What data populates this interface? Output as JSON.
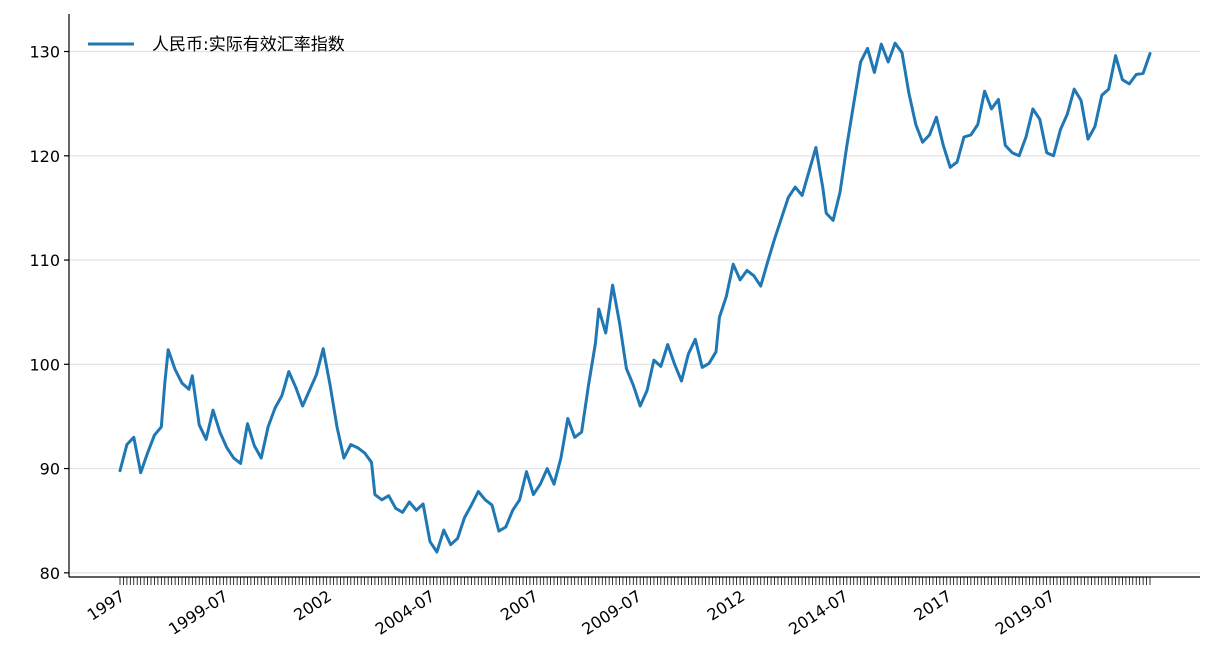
{
  "chart_data": {
    "type": "line",
    "title": "",
    "xlabel": "",
    "ylabel": "",
    "legend": {
      "placement": "top-left"
    },
    "grid": {
      "y": true,
      "x": false
    },
    "ylim": [
      79.6,
      133.6
    ],
    "y_ticks": [
      80,
      90,
      100,
      110,
      120,
      130
    ],
    "x_start": "1997-01",
    "x_end": "2021-12",
    "x_tick_labels": [
      {
        "label": "1997",
        "date": "1997-01"
      },
      {
        "label": "1999-07",
        "date": "1999-07"
      },
      {
        "label": "2002",
        "date": "2002-01"
      },
      {
        "label": "2004-07",
        "date": "2004-07"
      },
      {
        "label": "2007",
        "date": "2007-01"
      },
      {
        "label": "2009-07",
        "date": "2009-07"
      },
      {
        "label": "2012",
        "date": "2012-01"
      },
      {
        "label": "2014-07",
        "date": "2014-07"
      },
      {
        "label": "2017",
        "date": "2017-01"
      },
      {
        "label": "2019-07",
        "date": "2019-07"
      }
    ],
    "series": [
      {
        "name": "人民币:实际有效汇率指数",
        "color": "#1f77b4",
        "points": [
          [
            "1997-01",
            89.8
          ],
          [
            "1997-03",
            92.3
          ],
          [
            "1997-05",
            93.0
          ],
          [
            "1997-07",
            89.6
          ],
          [
            "1997-09",
            91.5
          ],
          [
            "1997-11",
            93.2
          ],
          [
            "1998-01",
            94.0
          ],
          [
            "1998-02",
            98.2
          ],
          [
            "1998-03",
            101.4
          ],
          [
            "1998-05",
            99.5
          ],
          [
            "1998-07",
            98.2
          ],
          [
            "1998-09",
            97.6
          ],
          [
            "1998-10",
            98.9
          ],
          [
            "1998-12",
            94.2
          ],
          [
            "1999-02",
            92.8
          ],
          [
            "1999-04",
            95.6
          ],
          [
            "1999-06",
            93.5
          ],
          [
            "1999-08",
            92.0
          ],
          [
            "1999-10",
            91.0
          ],
          [
            "1999-12",
            90.5
          ],
          [
            "2000-02",
            94.3
          ],
          [
            "2000-04",
            92.2
          ],
          [
            "2000-06",
            91.0
          ],
          [
            "2000-08",
            94.0
          ],
          [
            "2000-10",
            95.8
          ],
          [
            "2000-12",
            97.0
          ],
          [
            "2001-02",
            99.3
          ],
          [
            "2001-04",
            97.8
          ],
          [
            "2001-06",
            96.0
          ],
          [
            "2001-08",
            97.5
          ],
          [
            "2001-10",
            99.0
          ],
          [
            "2001-12",
            101.5
          ],
          [
            "2002-02",
            98.0
          ],
          [
            "2002-04",
            94.0
          ],
          [
            "2002-06",
            91.0
          ],
          [
            "2002-08",
            92.3
          ],
          [
            "2002-10",
            92.0
          ],
          [
            "2002-12",
            91.5
          ],
          [
            "2003-02",
            90.6
          ],
          [
            "2003-03",
            87.5
          ],
          [
            "2003-05",
            87.0
          ],
          [
            "2003-07",
            87.4
          ],
          [
            "2003-09",
            86.2
          ],
          [
            "2003-11",
            85.8
          ],
          [
            "2004-01",
            86.8
          ],
          [
            "2004-03",
            86.0
          ],
          [
            "2004-05",
            86.6
          ],
          [
            "2004-07",
            83.0
          ],
          [
            "2004-09",
            82.0
          ],
          [
            "2004-11",
            84.1
          ],
          [
            "2005-01",
            82.7
          ],
          [
            "2005-03",
            83.3
          ],
          [
            "2005-05",
            85.3
          ],
          [
            "2005-07",
            86.5
          ],
          [
            "2005-09",
            87.8
          ],
          [
            "2005-11",
            87.0
          ],
          [
            "2006-01",
            86.5
          ],
          [
            "2006-03",
            84.0
          ],
          [
            "2006-05",
            84.4
          ],
          [
            "2006-07",
            86.0
          ],
          [
            "2006-09",
            87.0
          ],
          [
            "2006-11",
            89.7
          ],
          [
            "2007-01",
            87.5
          ],
          [
            "2007-03",
            88.5
          ],
          [
            "2007-05",
            90.0
          ],
          [
            "2007-07",
            88.5
          ],
          [
            "2007-09",
            91.0
          ],
          [
            "2007-11",
            94.8
          ],
          [
            "2008-01",
            93.0
          ],
          [
            "2008-03",
            93.5
          ],
          [
            "2008-05",
            98.0
          ],
          [
            "2008-07",
            102.0
          ],
          [
            "2008-08",
            105.3
          ],
          [
            "2008-10",
            103.0
          ],
          [
            "2008-12",
            107.6
          ],
          [
            "2009-02",
            104.0
          ],
          [
            "2009-04",
            99.6
          ],
          [
            "2009-06",
            98.0
          ],
          [
            "2009-08",
            96.0
          ],
          [
            "2009-10",
            97.5
          ],
          [
            "2009-12",
            100.4
          ],
          [
            "2010-02",
            99.8
          ],
          [
            "2010-04",
            101.9
          ],
          [
            "2010-06",
            100.0
          ],
          [
            "2010-08",
            98.4
          ],
          [
            "2010-10",
            101.0
          ],
          [
            "2010-12",
            102.4
          ],
          [
            "2011-02",
            99.7
          ],
          [
            "2011-04",
            100.1
          ],
          [
            "2011-06",
            101.2
          ],
          [
            "2011-07",
            104.5
          ],
          [
            "2011-09",
            106.5
          ],
          [
            "2011-11",
            109.6
          ],
          [
            "2012-01",
            108.1
          ],
          [
            "2012-03",
            109.0
          ],
          [
            "2012-05",
            108.5
          ],
          [
            "2012-07",
            107.5
          ],
          [
            "2012-09",
            109.8
          ],
          [
            "2012-11",
            112.0
          ],
          [
            "2013-01",
            114.0
          ],
          [
            "2013-03",
            116.0
          ],
          [
            "2013-05",
            117.0
          ],
          [
            "2013-07",
            116.2
          ],
          [
            "2013-09",
            118.5
          ],
          [
            "2013-11",
            120.8
          ],
          [
            "2014-01",
            117.0
          ],
          [
            "2014-02",
            114.5
          ],
          [
            "2014-04",
            113.8
          ],
          [
            "2014-06",
            116.5
          ],
          [
            "2014-08",
            121.0
          ],
          [
            "2014-10",
            125.0
          ],
          [
            "2014-12",
            129.0
          ],
          [
            "2015-02",
            130.3
          ],
          [
            "2015-04",
            128.0
          ],
          [
            "2015-06",
            130.7
          ],
          [
            "2015-08",
            129.0
          ],
          [
            "2015-10",
            130.8
          ],
          [
            "2015-12",
            129.9
          ],
          [
            "2016-02",
            126.0
          ],
          [
            "2016-04",
            123.0
          ],
          [
            "2016-06",
            121.3
          ],
          [
            "2016-08",
            122.0
          ],
          [
            "2016-10",
            123.7
          ],
          [
            "2016-12",
            121.0
          ],
          [
            "2017-02",
            118.9
          ],
          [
            "2017-04",
            119.4
          ],
          [
            "2017-06",
            121.8
          ],
          [
            "2017-08",
            122.0
          ],
          [
            "2017-10",
            123.0
          ],
          [
            "2017-12",
            126.2
          ],
          [
            "2018-02",
            124.5
          ],
          [
            "2018-04",
            125.4
          ],
          [
            "2018-06",
            121.0
          ],
          [
            "2018-08",
            120.3
          ],
          [
            "2018-10",
            120.0
          ],
          [
            "2018-12",
            121.8
          ],
          [
            "2019-02",
            124.5
          ],
          [
            "2019-04",
            123.5
          ],
          [
            "2019-06",
            120.3
          ],
          [
            "2019-08",
            120.0
          ],
          [
            "2019-10",
            122.5
          ],
          [
            "2019-12",
            124.0
          ],
          [
            "2020-02",
            126.4
          ],
          [
            "2020-04",
            125.3
          ],
          [
            "2020-06",
            121.6
          ],
          [
            "2020-08",
            122.8
          ],
          [
            "2020-10",
            125.8
          ],
          [
            "2020-12",
            126.4
          ],
          [
            "2021-02",
            129.6
          ],
          [
            "2021-04",
            127.3
          ],
          [
            "2021-06",
            126.9
          ],
          [
            "2021-08",
            127.8
          ],
          [
            "2021-10",
            127.9
          ],
          [
            "2021-12",
            129.8
          ]
        ]
      }
    ]
  }
}
